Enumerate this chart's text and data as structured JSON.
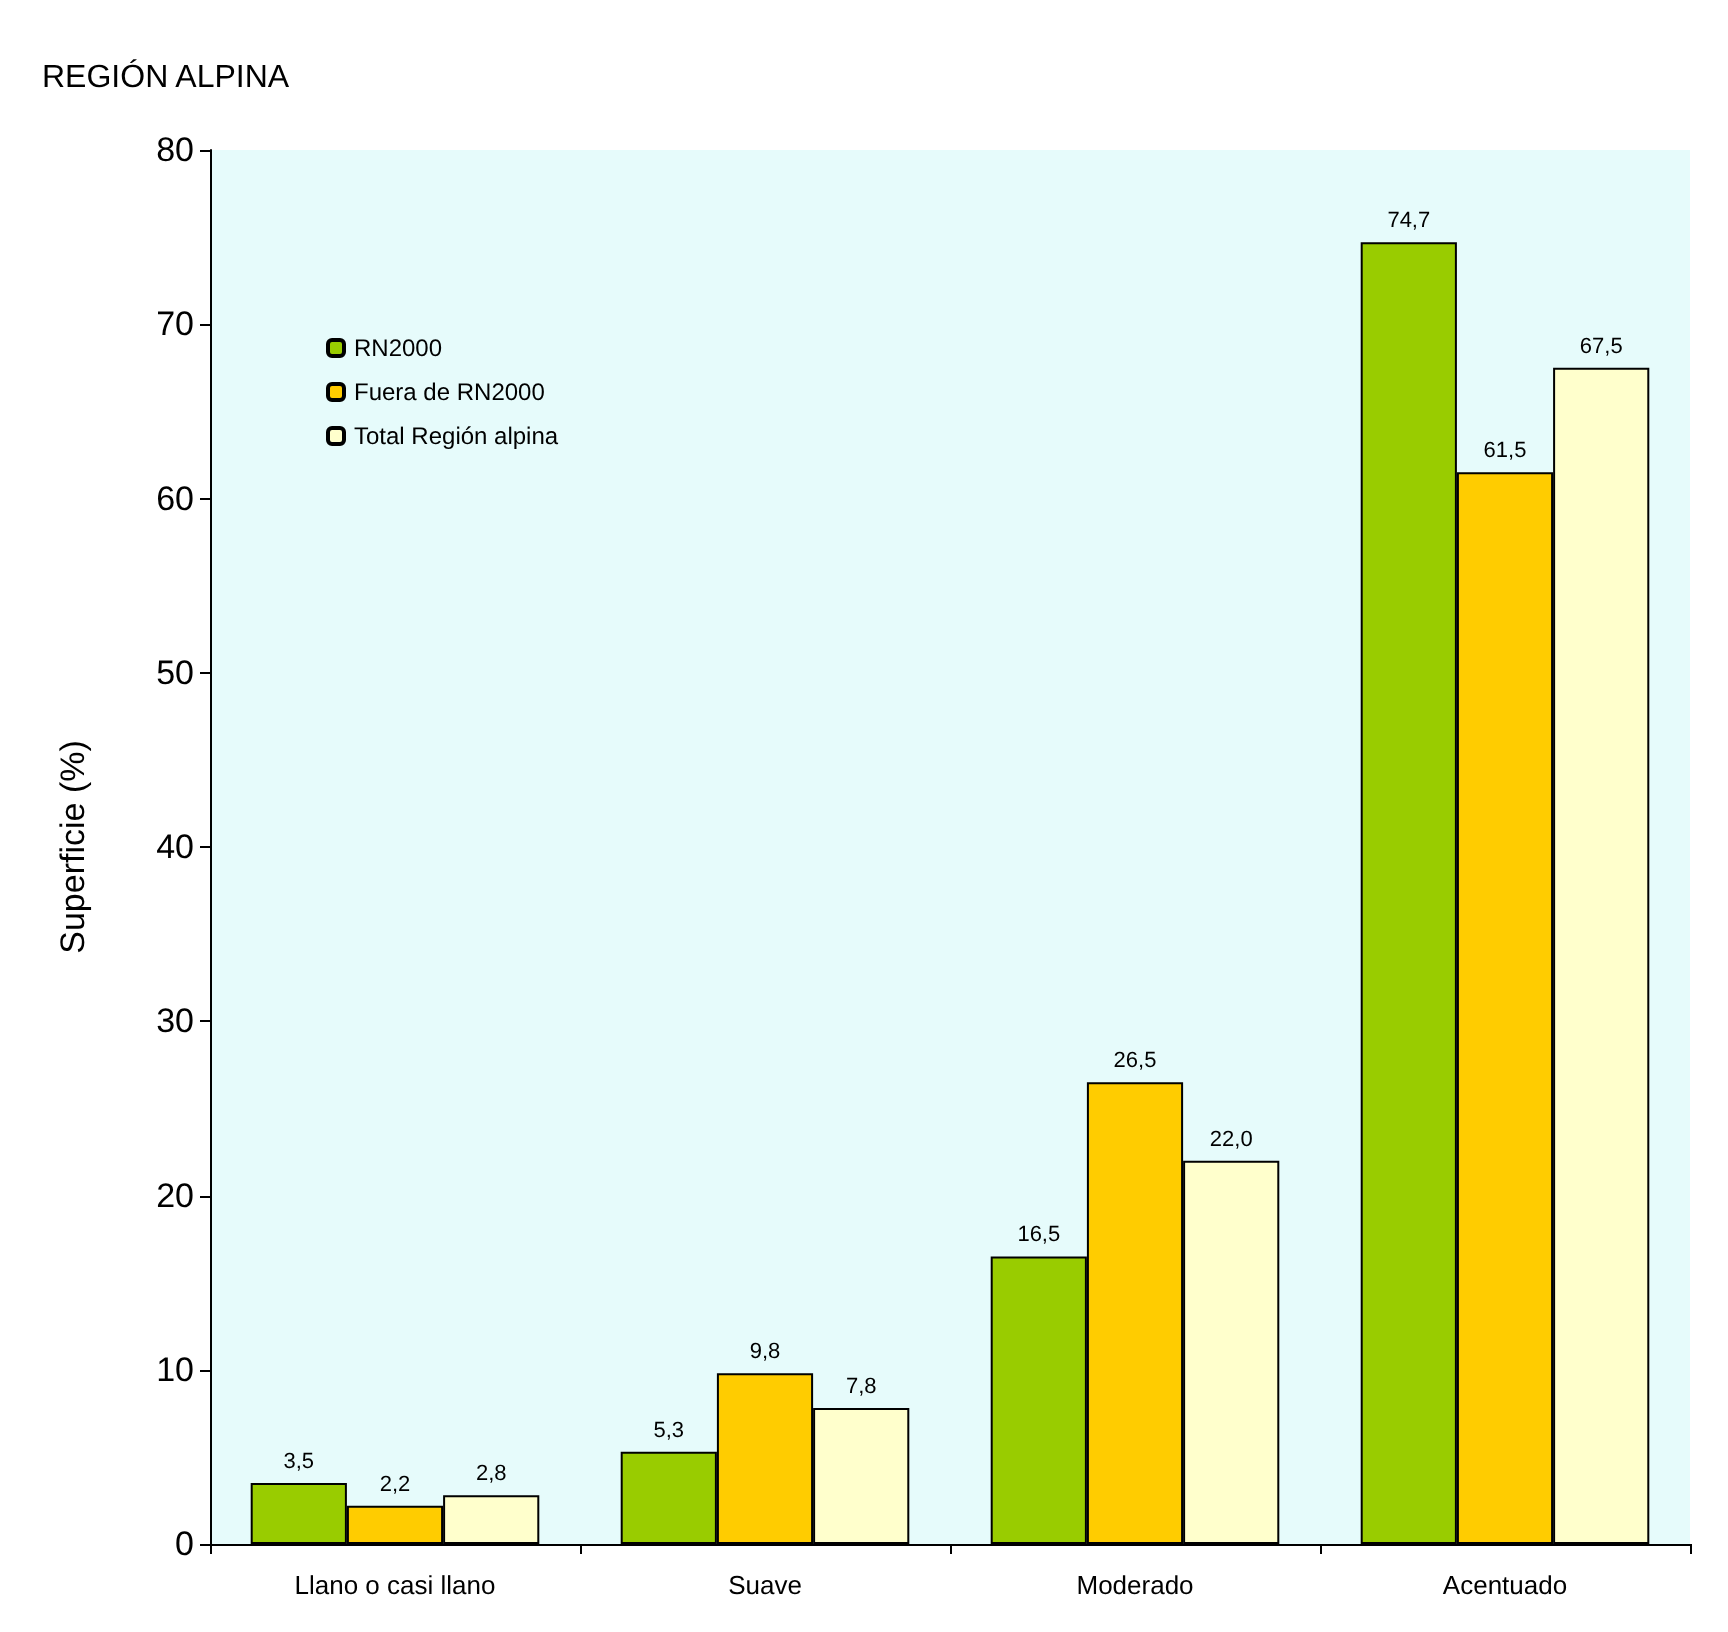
{
  "chart_data": {
    "type": "bar",
    "title": "REGIÓN ALPINA",
    "ylabel": "Superficie (%)",
    "categories": [
      "Llano o casi llano",
      "Suave",
      "Moderado",
      "Acentuado"
    ],
    "series": [
      {
        "name": "RN2000",
        "color": "#99cc00",
        "values": [
          3.5,
          5.3,
          16.5,
          74.7
        ],
        "value_labels": [
          "3,5",
          "5,3",
          "16,5",
          "74,7"
        ]
      },
      {
        "name": "Fuera de RN2000",
        "color": "#ffcc00",
        "values": [
          2.2,
          9.8,
          26.5,
          61.5
        ],
        "value_labels": [
          "2,2",
          "9,8",
          "26,5",
          "61,5"
        ]
      },
      {
        "name": "Total Región alpina",
        "color": "#ffffcc",
        "values": [
          2.8,
          7.8,
          22.0,
          67.5
        ],
        "value_labels": [
          "2,8",
          "7,8",
          "22,0",
          "67,5"
        ]
      }
    ],
    "ylim": [
      0,
      80
    ],
    "yticks": [
      0,
      10,
      20,
      30,
      40,
      50,
      60,
      70,
      80
    ],
    "grid": false,
    "legend": "top left"
  }
}
